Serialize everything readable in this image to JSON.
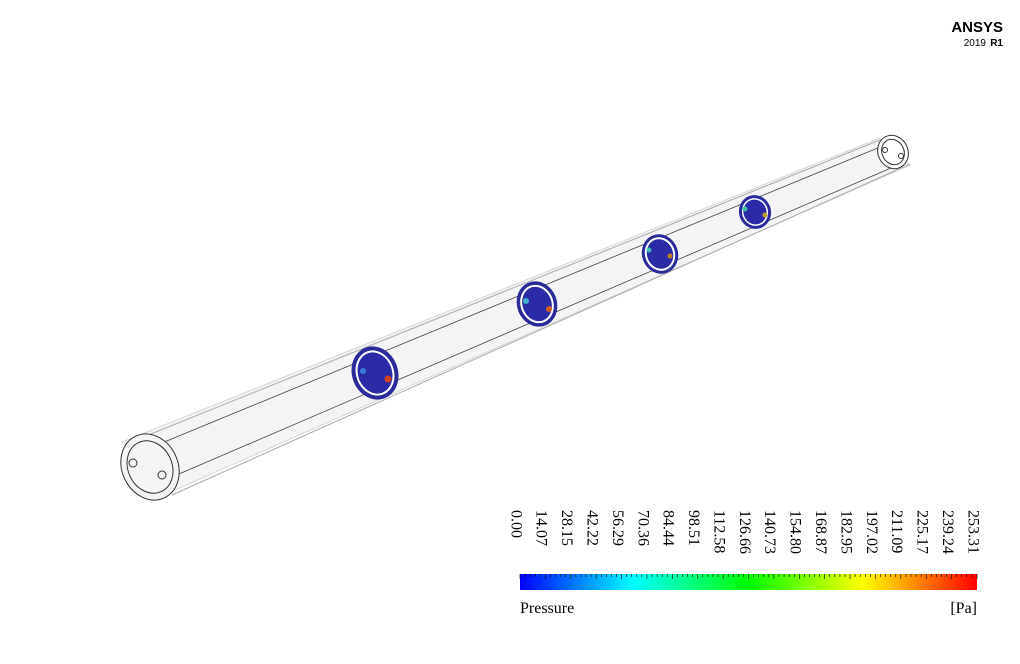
{
  "logo": {
    "brand": "ANSYS",
    "year": "2019",
    "release": "R1"
  },
  "legend": {
    "title": "Pressure",
    "unit": "[Pa]",
    "ticks": [
      "0.00",
      "14.07",
      "28.15",
      "42.22",
      "56.29",
      "70.36",
      "84.44",
      "98.51",
      "112.58",
      "126.66",
      "140.73",
      "154.80",
      "168.87",
      "182.95",
      "197.02",
      "211.09",
      "225.17",
      "239.24",
      "253.31"
    ]
  }
}
